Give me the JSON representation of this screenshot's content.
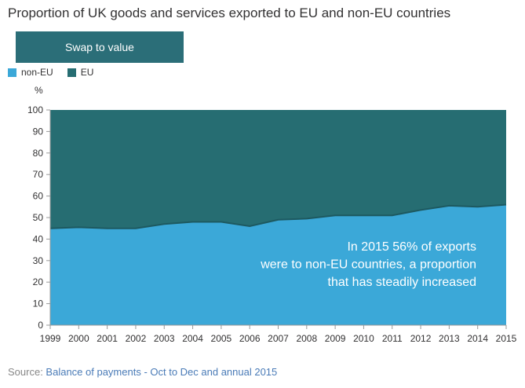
{
  "title": "Proportion of UK goods and services exported to EU and non-EU countries",
  "swap_button_label": "Swap to value",
  "source_prefix": "Source: ",
  "source_link": "Balance of payments - Oct to Dec and annual 2015",
  "annotation_lines": [
    "In 2015 56% of exports",
    "were to non-EU countries, a proportion",
    "that has steadily increased"
  ],
  "colors": {
    "non_eu": "#3ba8d8",
    "eu": "#266d72",
    "grid": "#cfd6d7"
  },
  "chart_data": {
    "type": "area",
    "stacked": true,
    "ylabel": "%",
    "ylim": [
      0,
      100
    ],
    "yticks": [
      0,
      10,
      20,
      30,
      40,
      50,
      60,
      70,
      80,
      90,
      100
    ],
    "x": [
      "1999",
      "2000",
      "2001",
      "2002",
      "2003",
      "2004",
      "2005",
      "2006",
      "2007",
      "2008",
      "2009",
      "2010",
      "2011",
      "2012",
      "2013",
      "2014",
      "2015"
    ],
    "series": [
      {
        "name": "non-EU",
        "values": [
          45,
          45.5,
          45,
          45,
          47,
          48,
          48,
          46,
          49,
          49.5,
          51,
          51,
          51,
          53.5,
          55.5,
          55,
          56
        ]
      },
      {
        "name": "EU",
        "values": [
          55,
          54.5,
          55,
          55,
          53,
          52,
          52,
          54,
          51,
          50.5,
          49,
          49,
          49,
          46.5,
          44.5,
          45,
          44
        ]
      }
    ],
    "legend_position": "top-left",
    "grid": true
  }
}
